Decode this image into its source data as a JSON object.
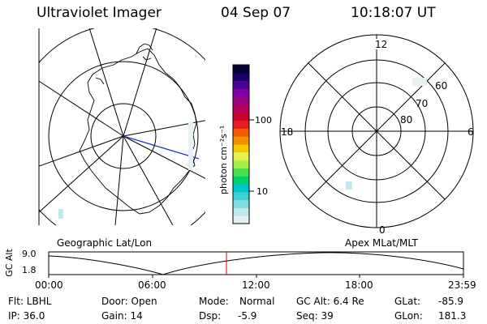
{
  "header": {
    "instrument": "Ultraviolet Imager",
    "date": "04 Sep 07",
    "time": "10:18:07 UT"
  },
  "left_map": {
    "caption": "Geographic Lat/Lon"
  },
  "colorbar": {
    "unit_label": "photon cm⁻²s⁻¹",
    "ticks": [
      "100",
      "10"
    ],
    "tick_values": [
      100,
      10
    ],
    "scale": "log",
    "colors": [
      "#e6f2f2",
      "#bfe8ec",
      "#7fdde0",
      "#3fcfd6",
      "#00c4cc",
      "#00d26a",
      "#4be04b",
      "#a6f04b",
      "#e6f24b",
      "#f2c800",
      "#f29000",
      "#f25a00",
      "#e61e1e",
      "#cc0033",
      "#b30059",
      "#990080",
      "#8000a6",
      "#4d0099",
      "#1a0066",
      "#000033"
    ]
  },
  "right_dial": {
    "caption": "Apex MLat/MLT",
    "mlt_labels": [
      "12",
      "18",
      "6",
      "0"
    ],
    "lat_labels": [
      "60",
      "70",
      "80"
    ]
  },
  "altitude_plot": {
    "ylabel": "GC Alt",
    "yticks": [
      "9.0",
      "1.8"
    ],
    "xticks": [
      "00:00",
      "06:00",
      "12:00",
      "18:00",
      "23:59"
    ],
    "cursor_color": "#cc0000"
  },
  "footer": {
    "row1": {
      "flt": "Flt: LBHL",
      "door": "Door: Open",
      "mode_label": "Mode:",
      "mode_value": "Normal",
      "gcalt": "GC Alt: 6.4 Re",
      "glat_label": "GLat:",
      "glat_value": "-85.9"
    },
    "row2": {
      "ip": "IP: 36.0",
      "gain": "Gain: 14",
      "dsp_label": "Dsp:",
      "dsp_value": "-5.9",
      "seq": "Seq: 39",
      "glon_label": "GLon:",
      "glon_value": "181.3"
    }
  }
}
